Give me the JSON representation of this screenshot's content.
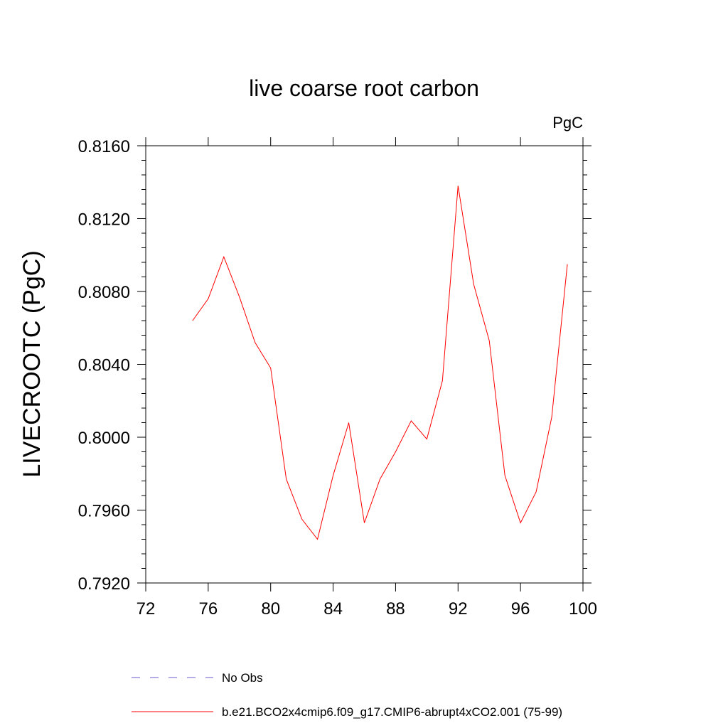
{
  "chart_data": {
    "type": "line",
    "title": "live coarse root carbon",
    "unit_label": "PgC",
    "ylabel": "LIVECROOTC  (PgC)",
    "xlabel": "",
    "xlim": [
      72,
      100
    ],
    "ylim": [
      0.792,
      0.816
    ],
    "xticks": [
      72,
      76,
      80,
      84,
      88,
      92,
      96,
      100
    ],
    "xtick_labels": [
      "72",
      "76",
      "80",
      "84",
      "88",
      "92",
      "96",
      "100"
    ],
    "yticks": [
      0.792,
      0.796,
      0.8,
      0.804,
      0.808,
      0.812,
      0.816
    ],
    "ytick_labels": [
      "0.7920",
      "0.7960",
      "0.8000",
      "0.8040",
      "0.8080",
      "0.8120",
      "0.8160"
    ],
    "grid": false,
    "legend_position": "bottom",
    "series": [
      {
        "name": "b.e21.BCO2x4cmip6.f09_g17.CMIP6-abrupt4xCO2.001 (75-99)",
        "color": "#ff0000",
        "style": "solid",
        "x": [
          75,
          76,
          77,
          78,
          79,
          80,
          81,
          82,
          83,
          84,
          85,
          86,
          87,
          88,
          89,
          90,
          91,
          92,
          93,
          94,
          95,
          96,
          97,
          98,
          99
        ],
        "values": [
          0.8064,
          0.8076,
          0.8099,
          0.8077,
          0.8052,
          0.8038,
          0.7977,
          0.7955,
          0.7944,
          0.7979,
          0.8008,
          0.7953,
          0.7977,
          0.7992,
          0.8009,
          0.7999,
          0.8031,
          0.8138,
          0.8084,
          0.8053,
          0.7979,
          0.7953,
          0.797,
          0.8011,
          0.8095
        ]
      }
    ],
    "legend": [
      {
        "label": "No Obs",
        "color": "#6a5acd",
        "style": "dashed"
      },
      {
        "label": "b.e21.BCO2x4cmip6.f09_g17.CMIP6-abrupt4xCO2.001 (75-99)",
        "color": "#ff0000",
        "style": "solid"
      }
    ]
  }
}
